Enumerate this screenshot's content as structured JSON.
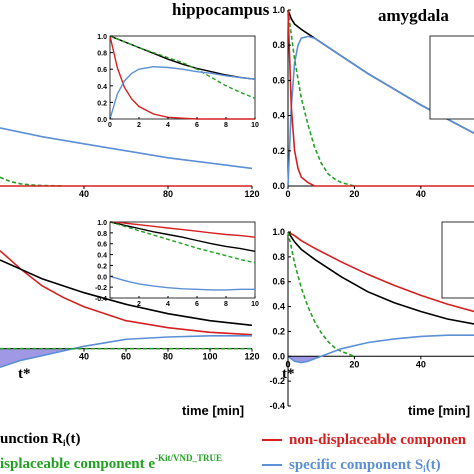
{
  "colors": {
    "total": "#000000",
    "nondisplaceable": "#d62020",
    "displaceable": "#22a022",
    "specific": "#5b8fd6",
    "shade": "#8f86df"
  },
  "panels": {
    "top_left_title": "hippocampus",
    "top_right_title": "amygdala",
    "bottom_left_xlabel": "time [min]",
    "bottom_right_xlabel": "time [min]",
    "tstar_left": "t*",
    "tstar_right": "t*"
  },
  "legend": {
    "total": "unction R",
    "total_sub": "i",
    "total_tail": "(t)",
    "displaceable": "isplaceable component e",
    "displaceable_sup": "-Kit/VND_TRUE",
    "nondisplaceable": "non-displaceable componen",
    "specific": "specific component S",
    "specific_sub": "i",
    "specific_tail": "(t)"
  },
  "chart_data": [
    {
      "id": "top-left",
      "type": "line",
      "title": "hippocampus",
      "xticks": [
        "40",
        "80",
        "120"
      ],
      "xlim": [
        0,
        120
      ],
      "ylim": [
        0,
        1.0
      ],
      "series": [
        {
          "key": "specific",
          "x": [
            0,
            20,
            40,
            60,
            80,
            100,
            120
          ],
          "y": [
            0.33,
            0.28,
            0.24,
            0.2,
            0.16,
            0.13,
            0.1
          ]
        },
        {
          "key": "displaceable",
          "x": [
            0,
            5,
            10,
            15,
            20,
            30
          ],
          "y": [
            0.05,
            0.025,
            0.012,
            0.006,
            0.003,
            0.0
          ]
        },
        {
          "key": "nondisplaceable",
          "x": [
            0,
            120
          ],
          "y": [
            0.0,
            0.0
          ]
        }
      ],
      "inset": {
        "xlim": [
          0,
          10
        ],
        "ylim": [
          0,
          1.0
        ],
        "xticks": [
          "0",
          "2",
          "4",
          "6",
          "8",
          "10"
        ],
        "yticks": [
          "0.0",
          "0.2",
          "0.4",
          "0.6",
          "0.8",
          "1.0"
        ],
        "series": [
          {
            "key": "total",
            "x": [
              0,
              1,
              2,
              3,
              4,
              5,
              6,
              7,
              8,
              9,
              10
            ],
            "y": [
              1.0,
              0.93,
              0.86,
              0.79,
              0.72,
              0.66,
              0.61,
              0.57,
              0.53,
              0.5,
              0.48
            ]
          },
          {
            "key": "nondisplaceable",
            "x": [
              0,
              0.5,
              1,
              1.5,
              2,
              3,
              4,
              5,
              6,
              8,
              10
            ],
            "y": [
              1.0,
              0.62,
              0.38,
              0.24,
              0.15,
              0.06,
              0.02,
              0.01,
              0.0,
              0.0,
              0.0
            ]
          },
          {
            "key": "displaceable",
            "x": [
              0,
              1,
              2,
              3,
              4,
              5,
              6,
              7,
              8,
              9,
              10
            ],
            "y": [
              1.0,
              0.93,
              0.86,
              0.8,
              0.74,
              0.68,
              0.6,
              0.5,
              0.4,
              0.32,
              0.25
            ]
          },
          {
            "key": "specific",
            "x": [
              0,
              0.5,
              1,
              1.5,
              2,
              3,
              4,
              5,
              6,
              7,
              8,
              10
            ],
            "y": [
              0.0,
              0.3,
              0.46,
              0.55,
              0.6,
              0.63,
              0.62,
              0.6,
              0.57,
              0.55,
              0.52,
              0.48
            ]
          }
        ]
      }
    },
    {
      "id": "top-right",
      "type": "line",
      "title": "amygdala",
      "xticks": [
        "0",
        "20",
        "40"
      ],
      "yticks": [
        "0.0",
        "0.2",
        "0.4",
        "0.6",
        "0.8",
        "1.0"
      ],
      "xlim": [
        0,
        56
      ],
      "ylim": [
        0,
        1.0
      ],
      "series": [
        {
          "key": "total",
          "x": [
            0,
            1,
            2,
            4,
            8,
            16,
            24,
            32,
            40,
            48,
            56
          ],
          "y": [
            1.0,
            0.95,
            0.92,
            0.89,
            0.84,
            0.74,
            0.64,
            0.55,
            0.46,
            0.38,
            0.3
          ]
        },
        {
          "key": "specific",
          "x": [
            0,
            1,
            2,
            3,
            4,
            6,
            8,
            16,
            24,
            32,
            40,
            48,
            56
          ],
          "y": [
            0.0,
            0.45,
            0.7,
            0.8,
            0.84,
            0.85,
            0.84,
            0.74,
            0.64,
            0.55,
            0.46,
            0.38,
            0.3
          ]
        },
        {
          "key": "displaceable",
          "x": [
            0,
            2,
            4,
            6,
            8,
            10,
            12,
            14,
            16,
            20
          ],
          "y": [
            1.0,
            0.72,
            0.5,
            0.35,
            0.22,
            0.13,
            0.07,
            0.04,
            0.02,
            0.0
          ]
        },
        {
          "key": "nondisplaceable",
          "x": [
            0,
            1,
            2,
            3,
            4,
            6,
            8,
            56
          ],
          "y": [
            1.0,
            0.45,
            0.2,
            0.1,
            0.05,
            0.02,
            0.0,
            0.0
          ]
        }
      ]
    },
    {
      "id": "bottom-left",
      "type": "line",
      "xlabel": "time [min]",
      "xticks": [
        "40",
        "60",
        "80",
        "100",
        "120"
      ],
      "xlim": [
        0,
        120
      ],
      "ylim": [
        -0.1,
        0.5
      ],
      "series": [
        {
          "key": "nondisplaceable",
          "x": [
            0,
            10,
            20,
            30,
            40,
            60,
            80,
            100,
            120
          ],
          "y": [
            0.42,
            0.34,
            0.27,
            0.22,
            0.18,
            0.12,
            0.09,
            0.07,
            0.06
          ]
        },
        {
          "key": "total",
          "x": [
            0,
            10,
            20,
            30,
            40,
            60,
            80,
            100,
            120
          ],
          "y": [
            0.38,
            0.34,
            0.3,
            0.27,
            0.24,
            0.19,
            0.15,
            0.12,
            0.1
          ]
        },
        {
          "key": "specific",
          "x": [
            0,
            10,
            20,
            30,
            40,
            60,
            80,
            100,
            120
          ],
          "y": [
            -0.08,
            -0.05,
            -0.03,
            -0.01,
            0.01,
            0.04,
            0.05,
            0.055,
            0.055
          ]
        },
        {
          "key": "displaceable",
          "x": [
            0,
            120
          ],
          "y": [
            0.0,
            0.0
          ]
        }
      ],
      "inset": {
        "xlim": [
          0,
          10
        ],
        "ylim": [
          -0.4,
          1.0
        ],
        "xticks": [
          "2",
          "4",
          "6",
          "8",
          "10"
        ],
        "yticks": [
          "-0.4",
          "-0.2",
          "0.0",
          "0.2",
          "0.4",
          "0.6",
          "0.8",
          "1.0"
        ],
        "series": [
          {
            "key": "nondisplaceable",
            "x": [
              0,
              1,
              2,
              3,
              4,
              5,
              6,
              7,
              8,
              9,
              10
            ],
            "y": [
              1.0,
              0.98,
              0.95,
              0.92,
              0.89,
              0.86,
              0.83,
              0.8,
              0.77,
              0.75,
              0.72
            ]
          },
          {
            "key": "total",
            "x": [
              0,
              1,
              2,
              3,
              4,
              5,
              6,
              7,
              8,
              9,
              10
            ],
            "y": [
              1.0,
              0.94,
              0.88,
              0.82,
              0.77,
              0.72,
              0.66,
              0.6,
              0.55,
              0.51,
              0.46
            ]
          },
          {
            "key": "displaceable",
            "x": [
              0,
              1,
              2,
              3,
              4,
              5,
              6,
              7,
              8,
              9,
              10
            ],
            "y": [
              1.0,
              0.92,
              0.84,
              0.76,
              0.68,
              0.6,
              0.52,
              0.45,
              0.38,
              0.31,
              0.25
            ]
          },
          {
            "key": "specific",
            "x": [
              0,
              1,
              2,
              3,
              4,
              5,
              6,
              7,
              8,
              9,
              10
            ],
            "y": [
              0.0,
              -0.08,
              -0.14,
              -0.18,
              -0.21,
              -0.23,
              -0.24,
              -0.25,
              -0.25,
              -0.24,
              -0.24
            ]
          }
        ]
      }
    },
    {
      "id": "bottom-right",
      "type": "line",
      "xlabel": "time [min]",
      "xticks": [
        "0",
        "20",
        "40"
      ],
      "yticks": [
        "-0.4",
        "-0.2",
        "0.0",
        "0.2",
        "0.4",
        "0.6",
        "0.8",
        "1.0"
      ],
      "xlim": [
        0,
        56
      ],
      "ylim": [
        -0.4,
        1.0
      ],
      "series": [
        {
          "key": "nondisplaceable",
          "x": [
            0,
            2,
            4,
            8,
            16,
            24,
            32,
            40,
            48,
            56
          ],
          "y": [
            1.0,
            0.97,
            0.93,
            0.87,
            0.76,
            0.66,
            0.57,
            0.49,
            0.42,
            0.36
          ]
        },
        {
          "key": "total",
          "x": [
            0,
            2,
            4,
            8,
            16,
            24,
            32,
            40,
            48,
            56
          ],
          "y": [
            1.0,
            0.92,
            0.86,
            0.78,
            0.64,
            0.52,
            0.43,
            0.36,
            0.3,
            0.26
          ]
        },
        {
          "key": "displaceable",
          "x": [
            0,
            2,
            4,
            6,
            8,
            10,
            12,
            14,
            16,
            18,
            20
          ],
          "y": [
            1.0,
            0.75,
            0.55,
            0.4,
            0.28,
            0.19,
            0.12,
            0.07,
            0.04,
            0.02,
            0.0
          ]
        },
        {
          "key": "specific",
          "x": [
            0,
            2,
            4,
            6,
            8,
            12,
            16,
            24,
            32,
            40,
            48,
            56
          ],
          "y": [
            0.0,
            -0.04,
            -0.05,
            -0.04,
            -0.02,
            0.02,
            0.06,
            0.11,
            0.14,
            0.16,
            0.17,
            0.17
          ]
        }
      ]
    }
  ]
}
